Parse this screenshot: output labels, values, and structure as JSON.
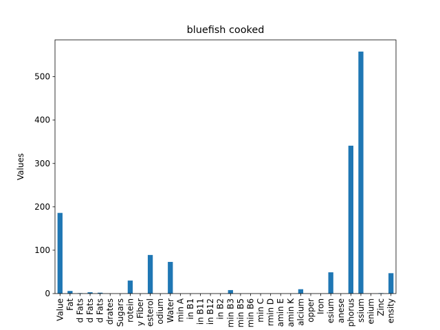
{
  "chart_data": {
    "type": "bar",
    "title": "bluefish cooked",
    "xlabel": "",
    "ylabel": "Values",
    "ylim": [
      0,
      585
    ],
    "yticks": [
      0,
      100,
      200,
      300,
      400,
      500
    ],
    "grid": false,
    "legend": "none",
    "bar_color": "#1f77b4",
    "categories": [
      "Value",
      "Fat",
      "d Fats",
      "d Fats",
      "d Fats",
      "drates",
      "Sugars",
      "rotein",
      "y Fiber",
      "esterol",
      "odium",
      "Water",
      "min A",
      "in B1",
      "in B11",
      "in B12",
      "in B2",
      "min B3",
      "min B5",
      "min B6",
      "min C",
      "rmin D",
      "amin E",
      "amin K",
      "alcium",
      "opper",
      "Iron",
      "esium",
      "anese",
      "phorus",
      "ssium",
      "enium",
      "Zinc",
      "ensity"
    ],
    "values": [
      186,
      6,
      1,
      3,
      2,
      0,
      0,
      30,
      0,
      89,
      0,
      73,
      0,
      0,
      0,
      0,
      0,
      8,
      0,
      0,
      0,
      0,
      0,
      0,
      10,
      0,
      0,
      49,
      0,
      341,
      558,
      0,
      1,
      47
    ]
  }
}
